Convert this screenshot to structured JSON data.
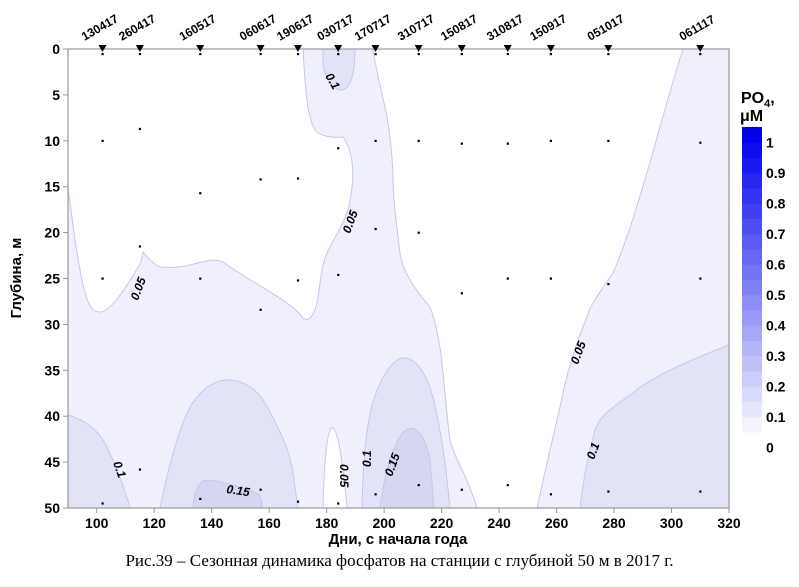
{
  "chart_data": {
    "type": "contour",
    "xlabel": "Дни, с начала года",
    "ylabel": "Глубина, м",
    "xlim": [
      90,
      320
    ],
    "ylim": [
      50,
      0
    ],
    "x_ticks": [
      "100",
      "120",
      "140",
      "160",
      "180",
      "200",
      "220",
      "240",
      "260",
      "280",
      "300",
      "320"
    ],
    "x_tick_values": [
      100,
      120,
      140,
      160,
      180,
      200,
      220,
      240,
      260,
      280,
      300,
      320
    ],
    "y_ticks": [
      "0",
      "5",
      "10",
      "15",
      "20",
      "25",
      "30",
      "35",
      "40",
      "45",
      "50"
    ],
    "y_tick_values": [
      0,
      5,
      10,
      15,
      20,
      25,
      30,
      35,
      40,
      45,
      50
    ],
    "colorbar": {
      "title": "PO",
      "title_sub": "4",
      "title_suffix": ",",
      "unit": "μM",
      "tick_labels": [
        "1",
        "0.9",
        "0.8",
        "0.7",
        "0.6",
        "0.5",
        "0.4",
        "0.3",
        "0.2",
        "0.1",
        "0"
      ],
      "tick_values": [
        1,
        0.9,
        0.8,
        0.7,
        0.6,
        0.5,
        0.4,
        0.3,
        0.2,
        0.1,
        0
      ],
      "range": [
        0.05,
        1.05
      ],
      "step": 0.05,
      "color_low": "#f4f4fd",
      "color_high": "#0000ee"
    },
    "contour_levels": [
      0.05,
      0.1,
      0.15
    ],
    "fill_colors": {
      "below_0.05": "#ffffff",
      "0.05-0.1": "#f0f0fc",
      "0.1-0.15": "#e3e3f8",
      "0.15-0.2": "#d6d6f3"
    },
    "contour_labels": [
      "0.1",
      "0.05",
      "0.05",
      "0.1",
      "0.15",
      "0.05",
      "0.1",
      "0.15",
      "0.05",
      "0.1"
    ],
    "stations": [
      {
        "label": "130417",
        "day": 102,
        "depths": [
          0,
          10,
          25,
          49.5
        ]
      },
      {
        "label": "260417",
        "day": 115,
        "depths": [
          0,
          8.7,
          21.5,
          45.8
        ]
      },
      {
        "label": "160517",
        "day": 136,
        "depths": [
          0,
          15.7,
          25,
          49
        ]
      },
      {
        "label": "060617",
        "day": 157,
        "depths": [
          0,
          14.2,
          28.4,
          48
        ]
      },
      {
        "label": "190617",
        "day": 170,
        "depths": [
          0,
          14.1,
          25.2,
          49.3
        ]
      },
      {
        "label": "030717",
        "day": 184,
        "depths": [
          0,
          10.8,
          24.6,
          49.5
        ]
      },
      {
        "label": "170717",
        "day": 197,
        "depths": [
          0,
          10,
          19.6,
          48.5
        ]
      },
      {
        "label": "310717",
        "day": 212,
        "depths": [
          0,
          10,
          20,
          47.5
        ]
      },
      {
        "label": "150817",
        "day": 227,
        "depths": [
          0.4,
          10.3,
          26.6,
          48
        ]
      },
      {
        "label": "310817",
        "day": 243,
        "depths": [
          0.5,
          10.3,
          25,
          47.5
        ]
      },
      {
        "label": "150917",
        "day": 258,
        "depths": [
          0,
          10,
          25,
          48.5
        ]
      },
      {
        "label": "051017",
        "day": 278,
        "depths": [
          0,
          10,
          25.6,
          48.2
        ]
      },
      {
        "label": "061117",
        "day": 310,
        "depths": [
          0,
          10.2,
          25,
          48.2
        ]
      }
    ]
  },
  "caption": "Рис.39 – Сезонная динамика фосфатов на станции с глубиной 50 м в 2017 г."
}
